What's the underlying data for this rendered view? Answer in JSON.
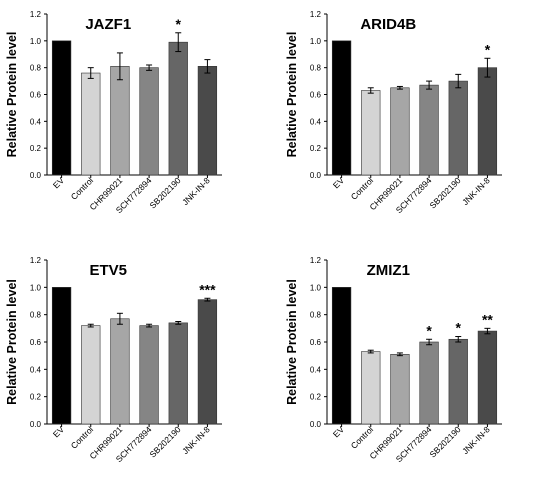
{
  "chart_data": [
    {
      "type": "bar",
      "title": "JAZF1",
      "ylabel": "Relative Protein level",
      "xlabel": "",
      "ylim": [
        0,
        1.2
      ],
      "yticks": [
        "0.0",
        "0.2",
        "0.4",
        "0.6",
        "0.8",
        "1.0",
        "1.2"
      ],
      "categories": [
        "EV",
        "Control",
        "CHR99021",
        "SCH772894",
        "SB202190",
        "JNK-IN-8"
      ],
      "values": [
        1.0,
        0.76,
        0.81,
        0.8,
        0.99,
        0.81
      ],
      "errors": [
        0,
        0.04,
        0.1,
        0.02,
        0.07,
        0.05
      ],
      "significance": [
        "",
        "",
        "",
        "",
        "*",
        ""
      ]
    },
    {
      "type": "bar",
      "title": "ARID4B",
      "ylabel": "Relative Protein level",
      "xlabel": "",
      "ylim": [
        0,
        1.2
      ],
      "yticks": [
        "0.0",
        "0.2",
        "0.4",
        "0.6",
        "0.8",
        "1.0",
        "1.2"
      ],
      "categories": [
        "EV",
        "Control",
        "CHR99021",
        "SCH772894",
        "SB202190",
        "JNK-IN-8"
      ],
      "values": [
        1.0,
        0.63,
        0.65,
        0.67,
        0.7,
        0.8
      ],
      "errors": [
        0,
        0.02,
        0.01,
        0.03,
        0.05,
        0.07
      ],
      "significance": [
        "",
        "",
        "",
        "",
        "",
        "*"
      ]
    },
    {
      "type": "bar",
      "title": "ETV5",
      "ylabel": "Relative Protein level",
      "xlabel": "",
      "ylim": [
        0,
        1.2
      ],
      "yticks": [
        "0.0",
        "0.2",
        "0.4",
        "0.6",
        "0.8",
        "1.0",
        "1.2"
      ],
      "categories": [
        "EV",
        "Control",
        "CHR99021",
        "SCH772894",
        "SB202190",
        "JNK-IN-8"
      ],
      "values": [
        1.0,
        0.72,
        0.77,
        0.72,
        0.74,
        0.91
      ],
      "errors": [
        0,
        0.01,
        0.04,
        0.01,
        0.01,
        0.01
      ],
      "significance": [
        "",
        "",
        "",
        "",
        "",
        "***"
      ]
    },
    {
      "type": "bar",
      "title": "ZMIZ1",
      "ylabel": "Relative Protein level",
      "xlabel": "",
      "ylim": [
        0,
        1.2
      ],
      "yticks": [
        "0.0",
        "0.2",
        "0.4",
        "0.6",
        "0.8",
        "1.0",
        "1.2"
      ],
      "categories": [
        "EV",
        "Control",
        "CHR99021",
        "SCH772894",
        "SB202190",
        "JNK-IN-8"
      ],
      "values": [
        1.0,
        0.53,
        0.51,
        0.6,
        0.62,
        0.68
      ],
      "errors": [
        0,
        0.01,
        0.01,
        0.02,
        0.02,
        0.02
      ],
      "significance": [
        "",
        "",
        "",
        "*",
        "*",
        "**"
      ]
    }
  ],
  "colors": {
    "bars": [
      "#000000",
      "#d4d4d4",
      "#a6a6a6",
      "#858585",
      "#666666",
      "#4a4a4a"
    ],
    "axis": "#000000"
  }
}
